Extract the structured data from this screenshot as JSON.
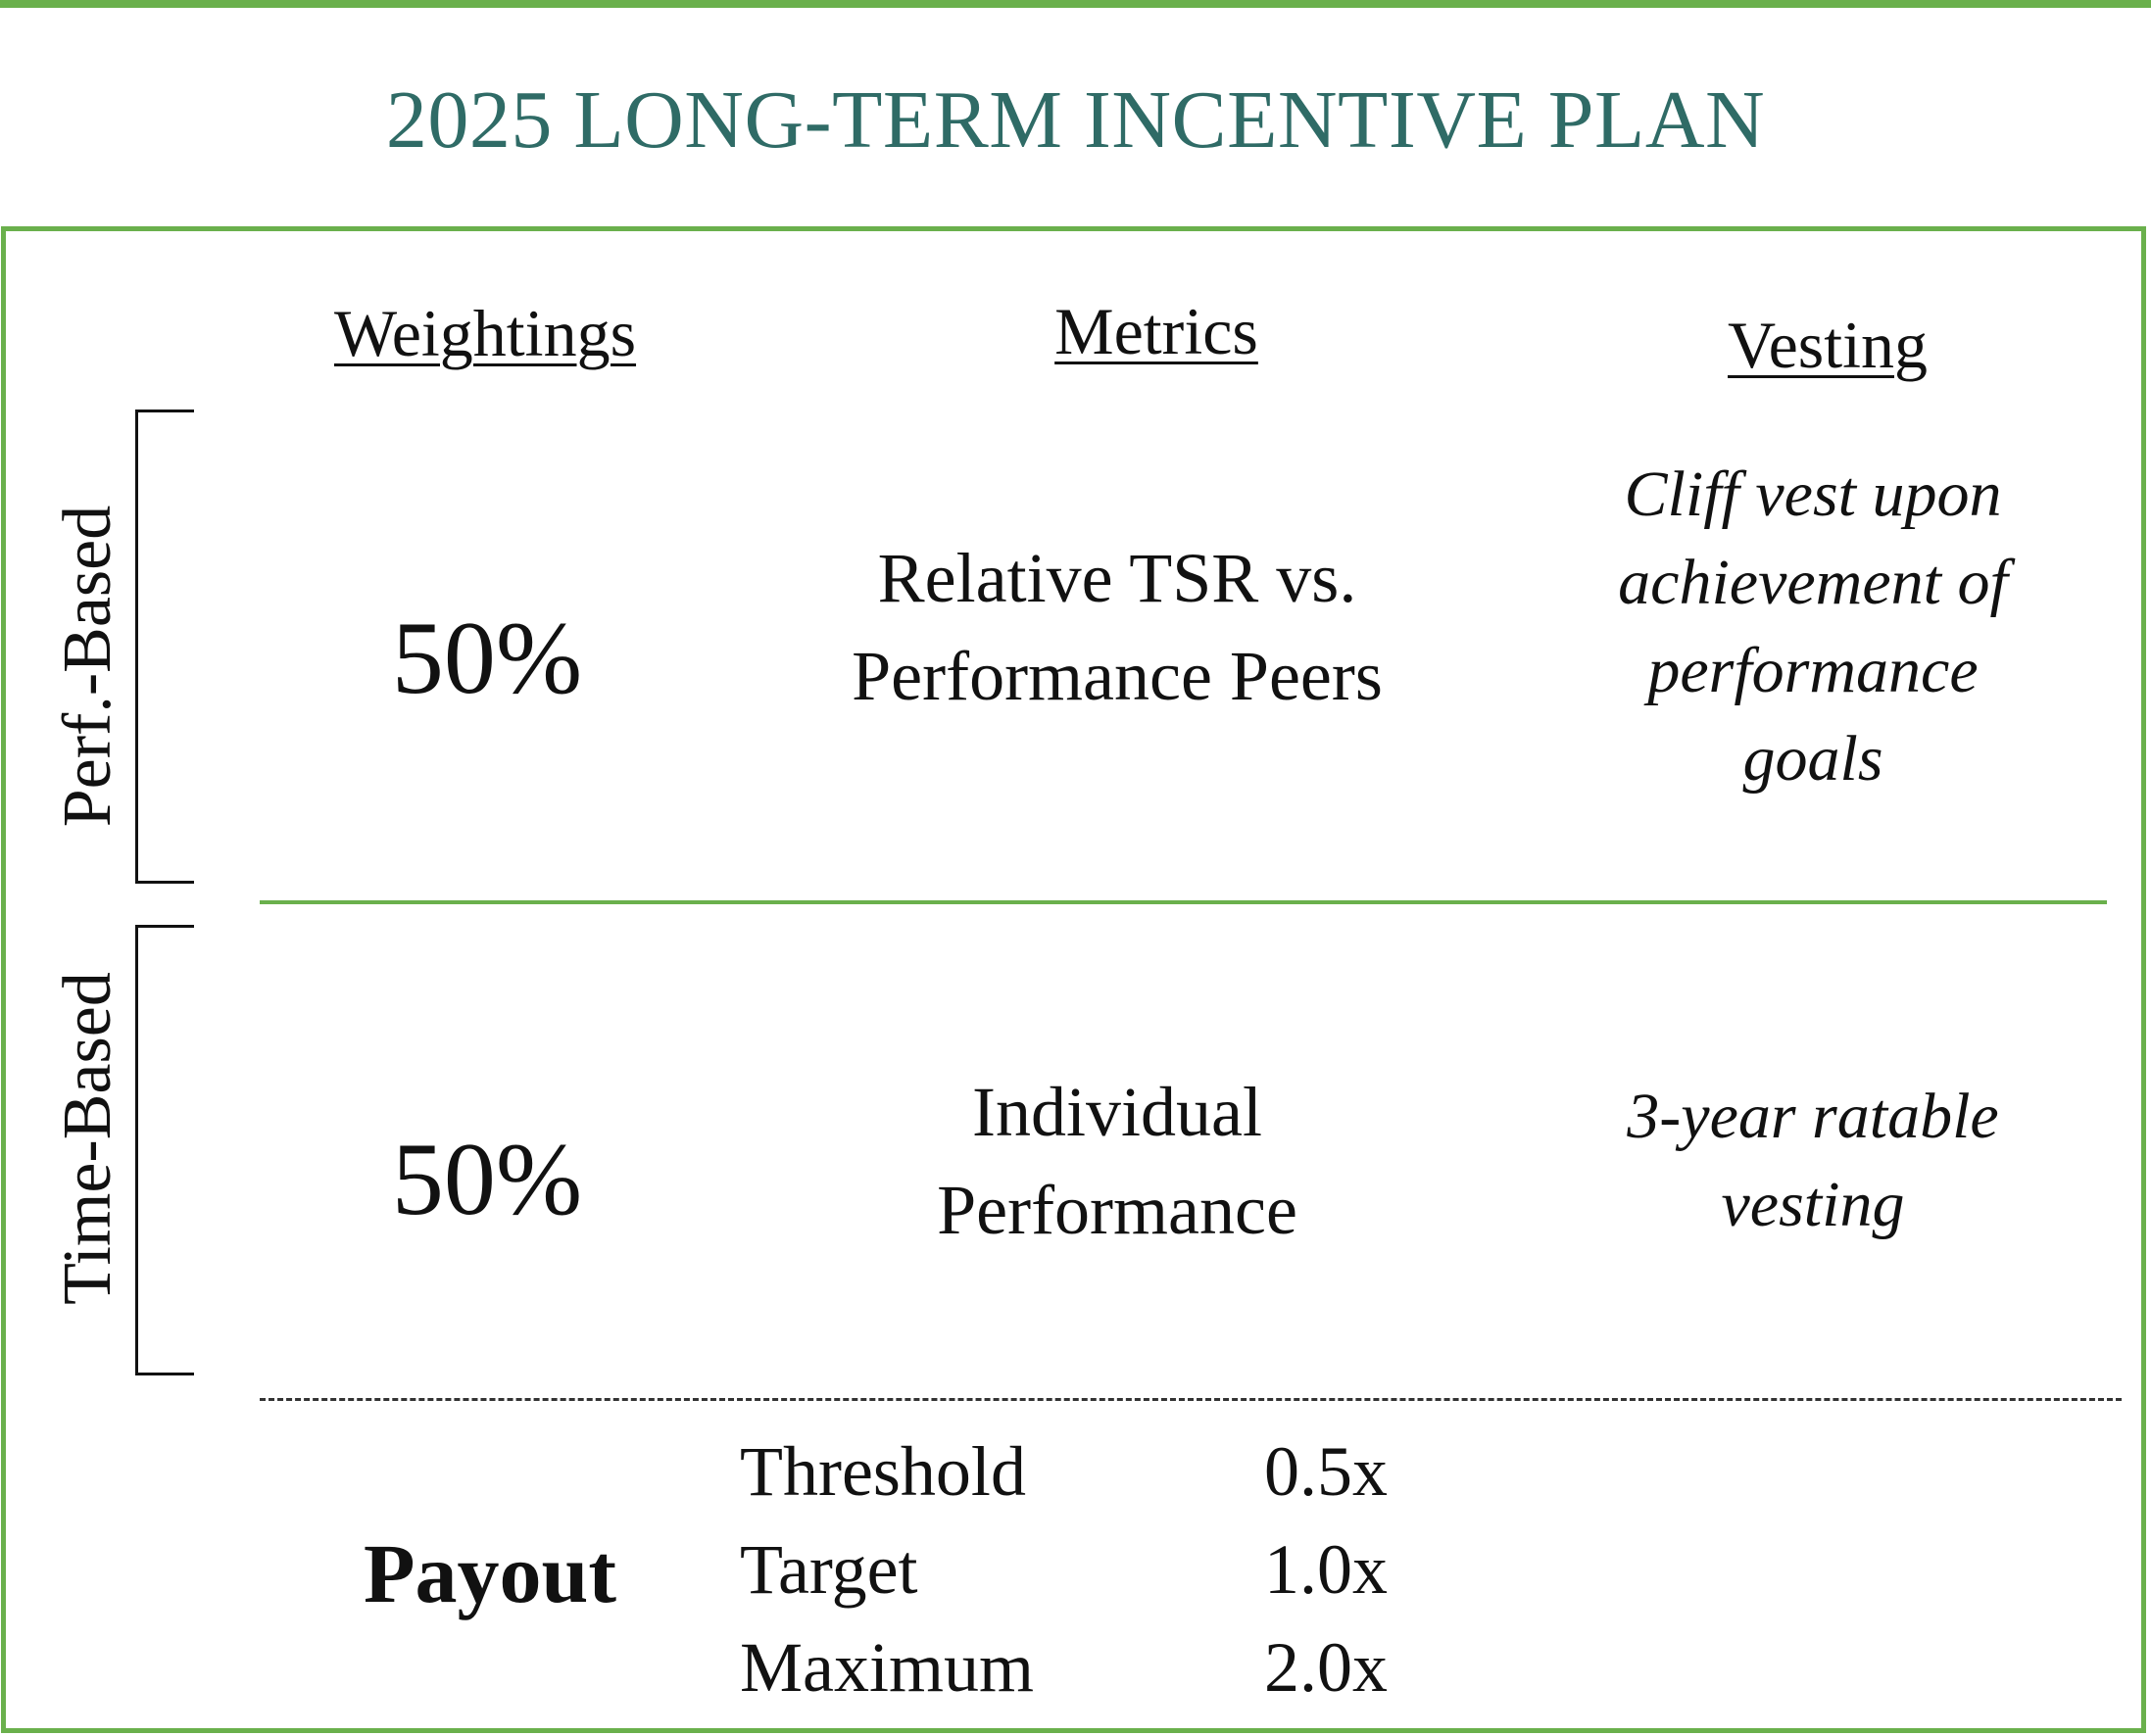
{
  "title": "2025 LONG-TERM INCENTIVE PLAN",
  "headers": {
    "weightings": "Weightings",
    "metrics": "Metrics",
    "vesting": "Vesting"
  },
  "rows": [
    {
      "group_label": "Perf.-Based",
      "weighting": "50%",
      "metric_lines": [
        "Relative TSR vs.",
        "Performance Peers"
      ],
      "vesting_lines": [
        "Cliff vest upon",
        "achievement of",
        "performance",
        "goals"
      ]
    },
    {
      "group_label": "Time-Based",
      "weighting": "50%",
      "metric_lines": [
        "Individual",
        "Performance"
      ],
      "vesting_lines": [
        "3-year ratable",
        "vesting"
      ]
    }
  ],
  "payout": {
    "label": "Payout",
    "tiers": [
      {
        "name": "Threshold",
        "multiplier": "0.5x"
      },
      {
        "name": "Target",
        "multiplier": "1.0x"
      },
      {
        "name": "Maximum",
        "multiplier": "2.0x"
      }
    ]
  },
  "colors": {
    "accent_green": "#6ab04c",
    "title_teal": "#2f6b66"
  }
}
